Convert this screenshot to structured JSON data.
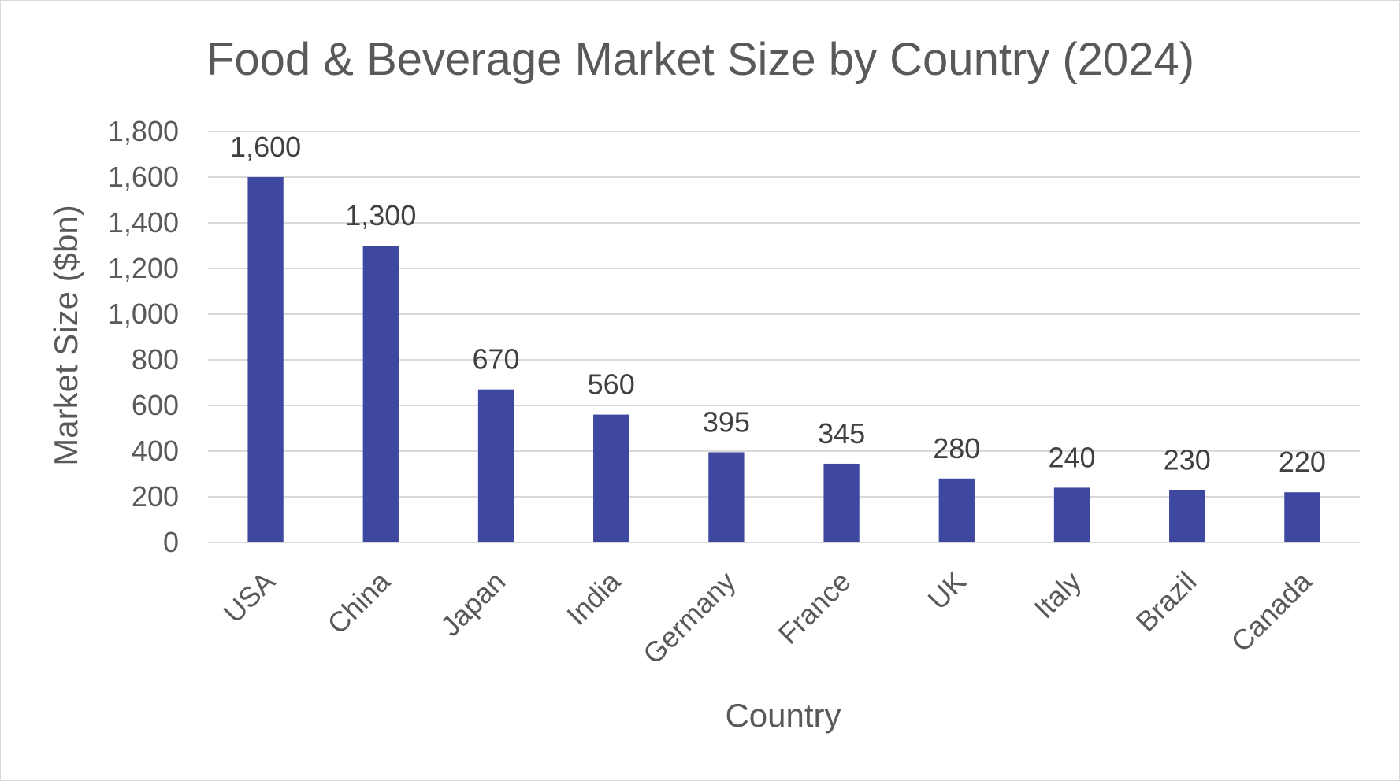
{
  "chart_data": {
    "type": "bar",
    "title": "Food & Beverage Market Size by Country (2024)",
    "xlabel": "Country",
    "ylabel": "Market Size ($bn)",
    "categories": [
      "USA",
      "China",
      "Japan",
      "India",
      "Germany",
      "France",
      "UK",
      "Italy",
      "Brazil",
      "Canada"
    ],
    "values": [
      1600,
      1300,
      670,
      560,
      395,
      345,
      280,
      240,
      230,
      220
    ],
    "data_labels": [
      "1,600",
      "1,300",
      "670",
      "560",
      "395",
      "345",
      "280",
      "240",
      "230",
      "220"
    ],
    "ylim": [
      0,
      1800
    ],
    "yticks": [
      0,
      200,
      400,
      600,
      800,
      1000,
      1200,
      1400,
      1600,
      1800
    ],
    "ytick_labels": [
      "0",
      "200",
      "400",
      "600",
      "800",
      "1,000",
      "1,200",
      "1,400",
      "1,600",
      "1,800"
    ],
    "grid": true,
    "bar_color": "#3f48a0",
    "legend": "none"
  }
}
